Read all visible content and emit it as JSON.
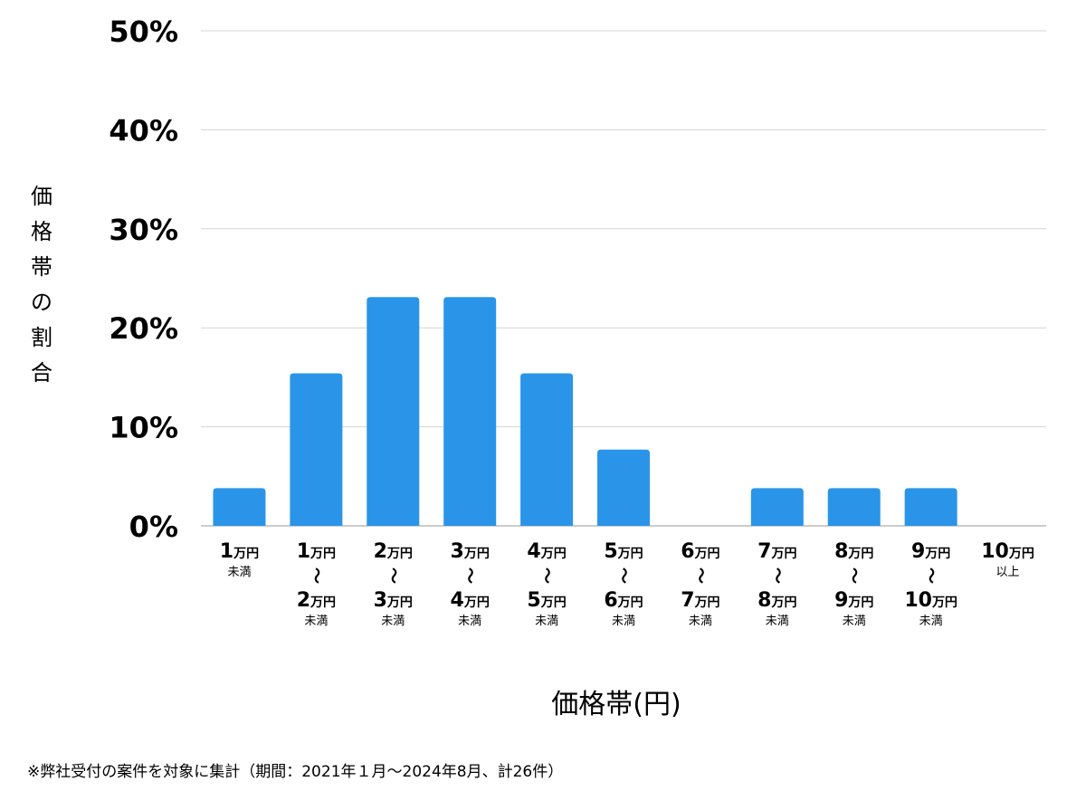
{
  "chart_data": {
    "type": "bar",
    "xlabel": "価格帯(円)",
    "ylabel": "価格帯の割合",
    "ylim": [
      0,
      50
    ],
    "yticks": [
      "0%",
      "10%",
      "20%",
      "30%",
      "40%",
      "50%"
    ],
    "ytick_values": [
      0,
      10,
      20,
      30,
      40,
      50
    ],
    "grid": true,
    "bar_color": "#2a95e8",
    "categories": [
      {
        "from": "1",
        "from_unit": "万円",
        "to": "",
        "to_unit": "",
        "suffix": "未満"
      },
      {
        "from": "1",
        "from_unit": "万円",
        "to": "2",
        "to_unit": "万円",
        "suffix": "未満"
      },
      {
        "from": "2",
        "from_unit": "万円",
        "to": "3",
        "to_unit": "万円",
        "suffix": "未満"
      },
      {
        "from": "3",
        "from_unit": "万円",
        "to": "4",
        "to_unit": "万円",
        "suffix": "未満"
      },
      {
        "from": "4",
        "from_unit": "万円",
        "to": "5",
        "to_unit": "万円",
        "suffix": "未満"
      },
      {
        "from": "5",
        "from_unit": "万円",
        "to": "6",
        "to_unit": "万円",
        "suffix": "未満"
      },
      {
        "from": "6",
        "from_unit": "万円",
        "to": "7",
        "to_unit": "万円",
        "suffix": "未満"
      },
      {
        "from": "7",
        "from_unit": "万円",
        "to": "8",
        "to_unit": "万円",
        "suffix": "未満"
      },
      {
        "from": "8",
        "from_unit": "万円",
        "to": "9",
        "to_unit": "万円",
        "suffix": "未満"
      },
      {
        "from": "9",
        "from_unit": "万円",
        "to": "10",
        "to_unit": "万円",
        "suffix": "未満"
      },
      {
        "from": "10",
        "from_unit": "万円",
        "to": "",
        "to_unit": "",
        "suffix": "以上"
      }
    ],
    "range_mark": "～",
    "values": [
      3.8,
      15.4,
      23.1,
      23.1,
      15.4,
      7.7,
      0,
      3.8,
      3.8,
      3.8,
      0
    ]
  },
  "footnote": "※弊社受付の案件を対象に集計（期間：2021年１月～2024年8月、計26件）"
}
